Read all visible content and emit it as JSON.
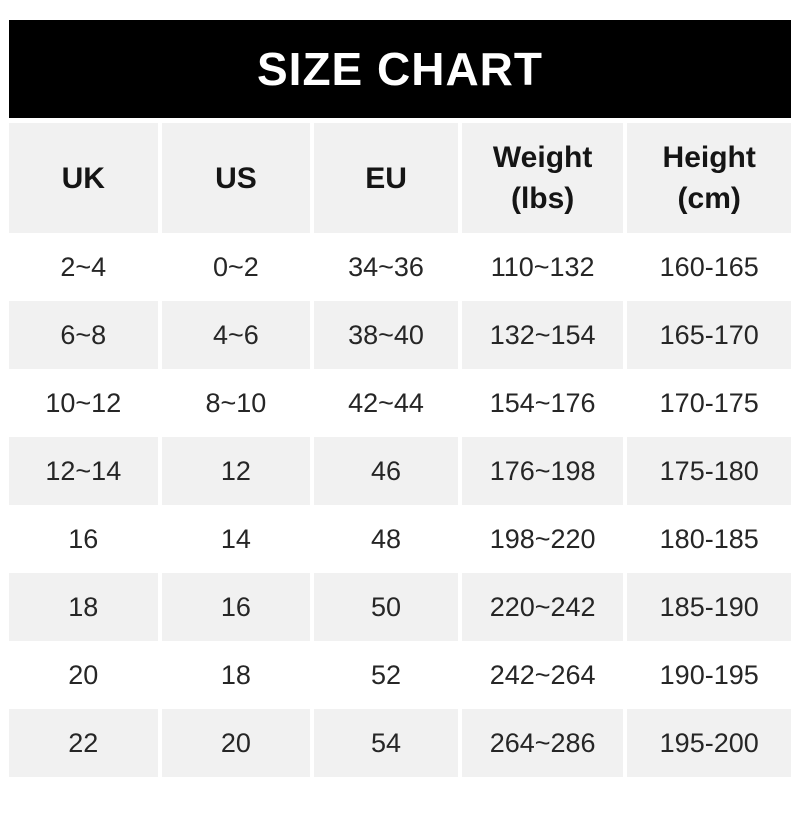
{
  "title": "SIZE CHART",
  "colors": {
    "banner_bg": "#000000",
    "banner_text": "#ffffff",
    "stripe": "#f1f1f1",
    "header_text": "#151515",
    "cell_text": "#262626"
  },
  "chart_data": {
    "type": "table",
    "title": "SIZE CHART",
    "columns": [
      {
        "label": "UK",
        "sub": ""
      },
      {
        "label": "US",
        "sub": ""
      },
      {
        "label": "EU",
        "sub": ""
      },
      {
        "label": "Weight",
        "sub": "(lbs)"
      },
      {
        "label": "Height",
        "sub": "(cm)"
      }
    ],
    "rows": [
      [
        "2~4",
        "0~2",
        "34~36",
        "110~132",
        "160-165"
      ],
      [
        "6~8",
        "4~6",
        "38~40",
        "132~154",
        "165-170"
      ],
      [
        "10~12",
        "8~10",
        "42~44",
        "154~176",
        "170-175"
      ],
      [
        "12~14",
        "12",
        "46",
        "176~198",
        "175-180"
      ],
      [
        "16",
        "14",
        "48",
        "198~220",
        "180-185"
      ],
      [
        "18",
        "16",
        "50",
        "220~242",
        "185-190"
      ],
      [
        "20",
        "18",
        "52",
        "242~264",
        "190-195"
      ],
      [
        "22",
        "20",
        "54",
        "264~286",
        "195-200"
      ]
    ]
  }
}
